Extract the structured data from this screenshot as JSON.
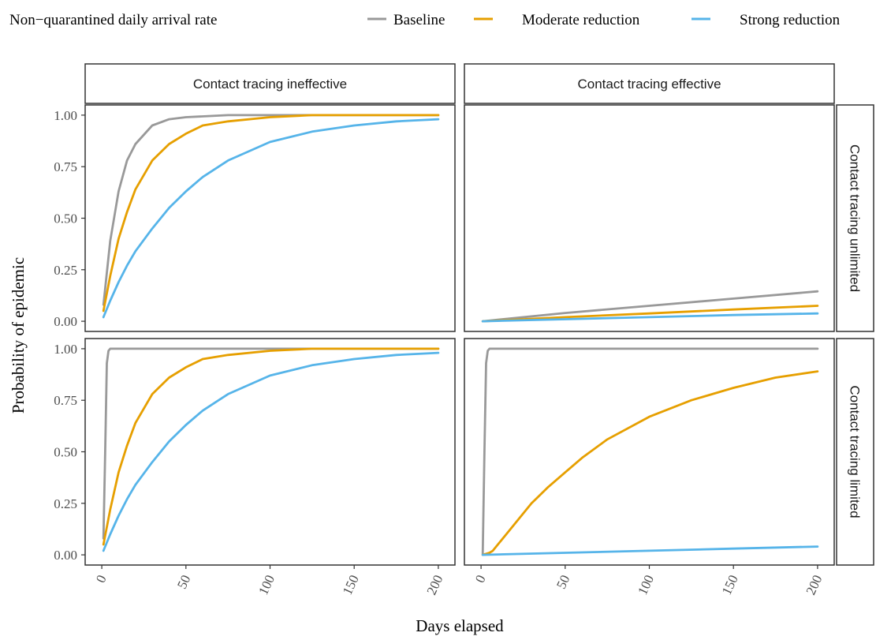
{
  "chart_data": {
    "type": "line",
    "xlabel": "Days elapsed",
    "ylabel": "Probability of epidemic",
    "xlim": [
      0,
      200
    ],
    "ylim": [
      0,
      1
    ],
    "x_ticks": [
      "0",
      "50",
      "100",
      "150",
      "200"
    ],
    "y_ticks": [
      "0.00",
      "0.25",
      "0.50",
      "0.75",
      "1.00"
    ],
    "legend": {
      "title": "Non−quarantined daily arrival rate",
      "position": "top",
      "entries": [
        {
          "name": "Baseline",
          "color": "#999999"
        },
        {
          "name": "Moderate reduction",
          "color": "#E69F00"
        },
        {
          "name": "Strong reduction",
          "color": "#56B4E9"
        }
      ]
    },
    "facets": {
      "columns": [
        "Contact tracing ineffective",
        "Contact tracing effective"
      ],
      "rows": [
        "Contact tracing unlimited",
        "Contact tracing limited"
      ]
    },
    "panels": [
      {
        "col": "Contact tracing ineffective",
        "row": "Contact tracing unlimited",
        "series": [
          {
            "name": "Baseline",
            "x": [
              1,
              5,
              10,
              15,
              20,
              30,
              40,
              50,
              75,
              100,
              150,
              200
            ],
            "y": [
              0.08,
              0.39,
              0.63,
              0.78,
              0.86,
              0.95,
              0.98,
              0.99,
              1.0,
              1.0,
              1.0,
              1.0
            ]
          },
          {
            "name": "Moderate reduction",
            "x": [
              1,
              5,
              10,
              15,
              20,
              30,
              40,
              50,
              60,
              75,
              100,
              125,
              150,
              200
            ],
            "y": [
              0.05,
              0.22,
              0.4,
              0.53,
              0.64,
              0.78,
              0.86,
              0.91,
              0.95,
              0.97,
              0.99,
              1.0,
              1.0,
              1.0
            ]
          },
          {
            "name": "Strong reduction",
            "x": [
              1,
              5,
              10,
              15,
              20,
              30,
              40,
              50,
              60,
              75,
              100,
              125,
              150,
              175,
              200
            ],
            "y": [
              0.02,
              0.1,
              0.19,
              0.27,
              0.34,
              0.45,
              0.55,
              0.63,
              0.7,
              0.78,
              0.87,
              0.92,
              0.95,
              0.97,
              0.98
            ]
          }
        ]
      },
      {
        "col": "Contact tracing effective",
        "row": "Contact tracing unlimited",
        "series": [
          {
            "name": "Baseline",
            "x": [
              1,
              50,
              100,
              150,
              200
            ],
            "y": [
              0.0,
              0.04,
              0.075,
              0.11,
              0.145
            ]
          },
          {
            "name": "Moderate reduction",
            "x": [
              1,
              50,
              100,
              150,
              200
            ],
            "y": [
              0.0,
              0.02,
              0.038,
              0.057,
              0.075
            ]
          },
          {
            "name": "Strong reduction",
            "x": [
              1,
              50,
              100,
              150,
              200
            ],
            "y": [
              0.0,
              0.01,
              0.02,
              0.03,
              0.038
            ]
          }
        ]
      },
      {
        "col": "Contact tracing ineffective",
        "row": "Contact tracing limited",
        "series": [
          {
            "name": "Baseline",
            "x": [
              1,
              2,
              3,
              4,
              5,
              200
            ],
            "y": [
              0.08,
              0.5,
              0.93,
              0.99,
              1.0,
              1.0
            ]
          },
          {
            "name": "Moderate reduction",
            "x": [
              1,
              5,
              10,
              15,
              20,
              30,
              40,
              50,
              60,
              75,
              100,
              125,
              150,
              200
            ],
            "y": [
              0.05,
              0.22,
              0.4,
              0.53,
              0.64,
              0.78,
              0.86,
              0.91,
              0.95,
              0.97,
              0.99,
              1.0,
              1.0,
              1.0
            ]
          },
          {
            "name": "Strong reduction",
            "x": [
              1,
              5,
              10,
              15,
              20,
              30,
              40,
              50,
              60,
              75,
              100,
              125,
              150,
              175,
              200
            ],
            "y": [
              0.02,
              0.1,
              0.19,
              0.27,
              0.34,
              0.45,
              0.55,
              0.63,
              0.7,
              0.78,
              0.87,
              0.92,
              0.95,
              0.97,
              0.98
            ]
          }
        ]
      },
      {
        "col": "Contact tracing effective",
        "row": "Contact tracing limited",
        "series": [
          {
            "name": "Baseline",
            "x": [
              1,
              2,
              3,
              4,
              5,
              200
            ],
            "y": [
              0.0,
              0.5,
              0.93,
              0.99,
              1.0,
              1.0
            ]
          },
          {
            "name": "Moderate reduction",
            "x": [
              1,
              5,
              7,
              10,
              15,
              20,
              30,
              40,
              50,
              60,
              75,
              100,
              125,
              150,
              175,
              200
            ],
            "y": [
              0.0,
              0.01,
              0.02,
              0.05,
              0.1,
              0.15,
              0.25,
              0.33,
              0.4,
              0.47,
              0.56,
              0.67,
              0.75,
              0.81,
              0.86,
              0.89
            ]
          },
          {
            "name": "Strong reduction",
            "x": [
              1,
              50,
              100,
              150,
              200
            ],
            "y": [
              0.0,
              0.01,
              0.02,
              0.03,
              0.04
            ]
          }
        ]
      }
    ]
  }
}
